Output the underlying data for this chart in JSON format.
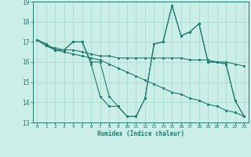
{
  "xlabel": "Humidex (Indice chaleur)",
  "x_values": [
    0,
    1,
    2,
    3,
    4,
    5,
    6,
    7,
    8,
    9,
    10,
    11,
    12,
    13,
    14,
    15,
    16,
    17,
    18,
    19,
    20,
    21,
    22,
    23
  ],
  "line1": [
    17.1,
    16.9,
    16.6,
    16.6,
    17.0,
    17.0,
    16.0,
    16.0,
    14.3,
    13.8,
    13.3,
    13.3,
    14.2,
    16.9,
    17.0,
    18.8,
    17.3,
    17.5,
    17.9,
    16.0,
    16.0,
    15.9,
    14.1,
    13.3
  ],
  "line2": [
    17.1,
    16.9,
    16.6,
    16.6,
    17.0,
    17.0,
    15.9,
    14.3,
    13.8,
    13.8,
    13.3,
    13.3,
    14.2,
    16.9,
    17.0,
    18.8,
    17.3,
    17.5,
    17.9,
    16.0,
    16.0,
    15.9,
    14.1,
    13.3
  ],
  "line3": [
    17.1,
    16.8,
    16.7,
    16.6,
    16.6,
    16.5,
    16.4,
    16.3,
    16.3,
    16.2,
    16.2,
    16.2,
    16.2,
    16.2,
    16.2,
    16.2,
    16.2,
    16.1,
    16.1,
    16.1,
    16.0,
    16.0,
    15.9,
    15.8
  ],
  "line4": [
    17.1,
    16.8,
    16.6,
    16.5,
    16.4,
    16.3,
    16.2,
    16.1,
    15.9,
    15.7,
    15.5,
    15.3,
    15.1,
    14.9,
    14.7,
    14.5,
    14.4,
    14.2,
    14.1,
    13.9,
    13.8,
    13.6,
    13.5,
    13.3
  ],
  "line_color": "#217a6e",
  "bg_color": "#cceee8",
  "grid_color": "#aaddcc",
  "ylim": [
    13,
    19
  ],
  "xlim": [
    -0.5,
    23.5
  ],
  "yticks": [
    13,
    14,
    15,
    16,
    17,
    18,
    19
  ],
  "xtick_labels": [
    "0",
    "1",
    "2",
    "3",
    "4",
    "5",
    "6",
    "7",
    "8",
    "9",
    "10",
    "11",
    "12",
    "13",
    "14",
    "15",
    "16",
    "17",
    "18",
    "19",
    "20",
    "21",
    "22",
    "23"
  ]
}
